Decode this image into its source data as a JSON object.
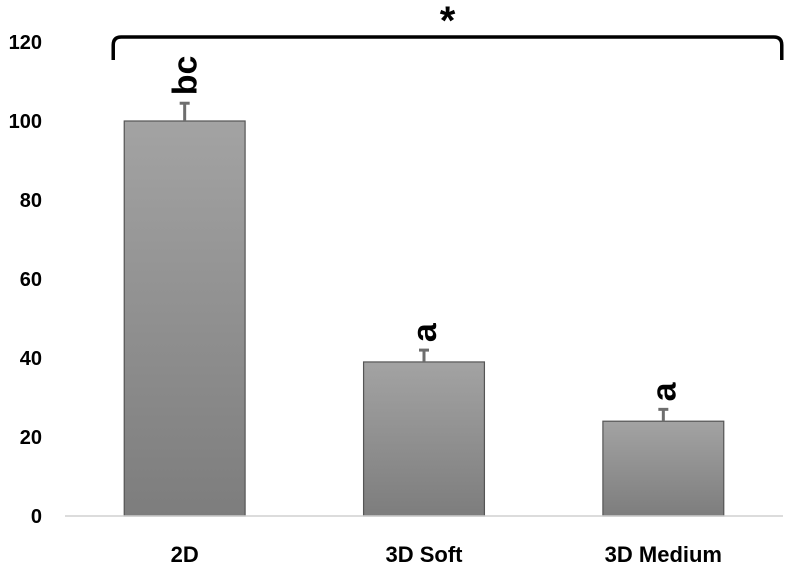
{
  "chart_data": {
    "type": "bar",
    "title": "",
    "xlabel": "",
    "ylabel": "",
    "categories": [
      "2D",
      "3D Soft",
      "3D Medium"
    ],
    "values": [
      100,
      39,
      24
    ],
    "errors": [
      4.5,
      3,
      3
    ],
    "significance_labels": [
      "bc",
      "a",
      "a"
    ],
    "overall_significance": "*",
    "ylim": [
      0,
      120
    ],
    "yticks": [
      "0",
      "20",
      "40",
      "60",
      "80",
      "100",
      "120"
    ],
    "grid": false,
    "legend": "none",
    "colors": {
      "bar_top": "#a3a3a3",
      "bar_bottom": "#7d7d7d",
      "bar_border": "#555555",
      "error_bar": "#6e6e6e",
      "axis": "#d0d0d0",
      "text": "#000000"
    }
  }
}
